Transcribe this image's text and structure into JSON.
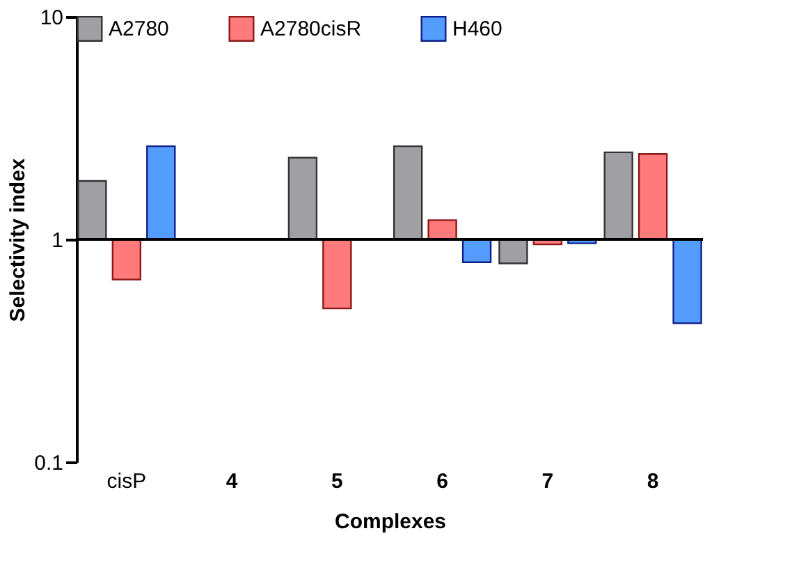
{
  "chart_data": {
    "type": "bar",
    "xlabel": "Complexes",
    "ylabel": "Selectivity index",
    "categories": [
      "cisP",
      "4",
      "5",
      "6",
      "7",
      "8"
    ],
    "series": [
      {
        "name": "A2780",
        "color": "#a0a0a4",
        "values": [
          0.83,
          null,
          1.33,
          1.62,
          -0.22,
          1.46
        ],
        "base": [
          1,
          null,
          1,
          1,
          1,
          1
        ]
      },
      {
        "name": "A2780cisR",
        "color": "#ff7b7b",
        "values": [
          -0.34,
          null,
          -0.51,
          0.22,
          -0.05,
          1.42
        ],
        "base": [
          1,
          null,
          1,
          1,
          1,
          1
        ]
      },
      {
        "name": "H460",
        "color": "#559cff",
        "values": [
          1.62,
          null,
          null,
          -0.21,
          -0.04,
          -0.58
        ],
        "base": [
          1,
          null,
          null,
          1,
          1,
          1
        ]
      }
    ],
    "log": true,
    "ylim": [
      0.1,
      10
    ],
    "yticks": [
      0.1,
      1,
      10
    ],
    "ref_lines": [
      {
        "axis": "y",
        "value": 1,
        "color": "#000000",
        "line_style": "solid"
      }
    ],
    "grid": false,
    "legend": "top"
  }
}
